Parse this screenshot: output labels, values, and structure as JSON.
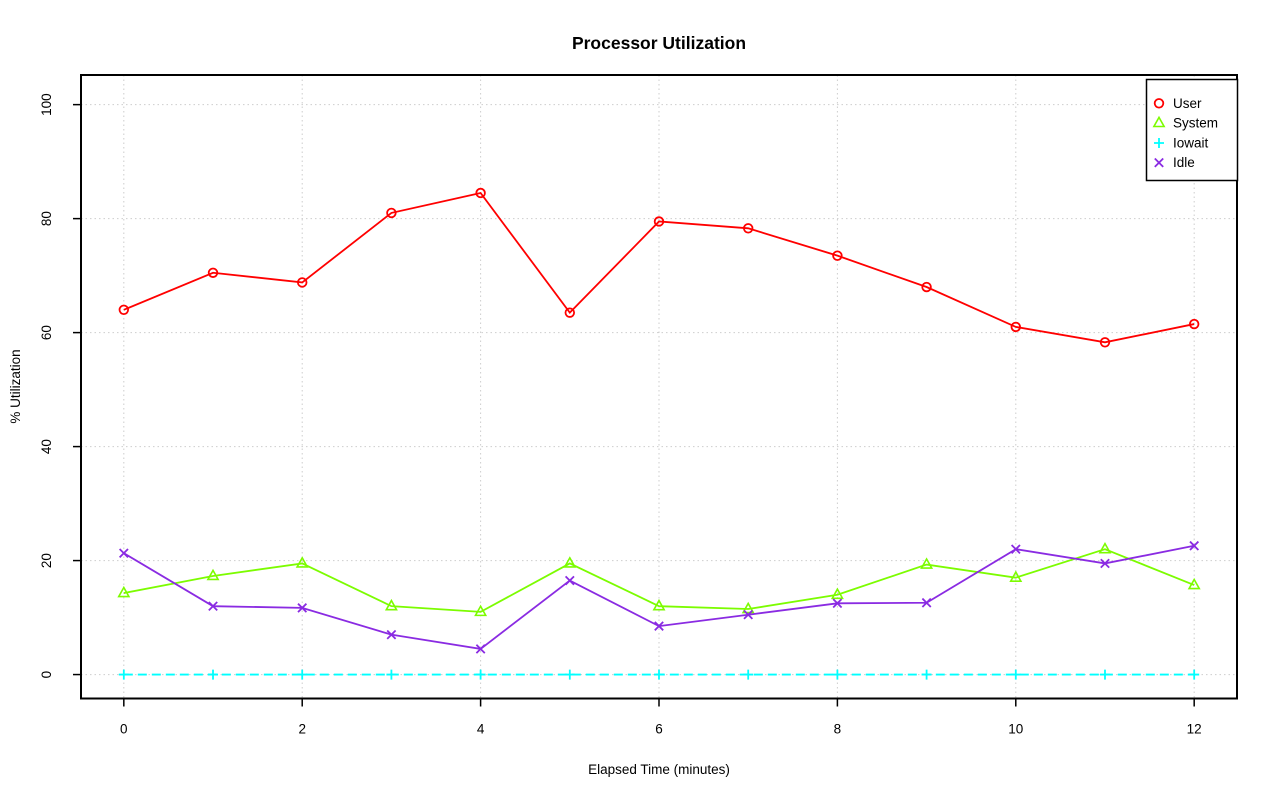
{
  "chart_data": {
    "type": "line",
    "title": "Processor Utilization",
    "xlabel": "Elapsed Time (minutes)",
    "ylabel": "% Utilization",
    "x": [
      0,
      1,
      2,
      3,
      4,
      5,
      6,
      7,
      8,
      9,
      10,
      11,
      12
    ],
    "x_ticks": [
      0,
      2,
      4,
      6,
      8,
      10,
      12
    ],
    "y_ticks": [
      0,
      20,
      40,
      60,
      80,
      100
    ],
    "xlim": [
      -0.48,
      12.48
    ],
    "ylim": [
      -4.2,
      105.2
    ],
    "grid": true,
    "grid_color": "#cdcdcd",
    "axis_color": "#000000",
    "legend_position": "topright",
    "series": [
      {
        "name": "User",
        "color": "#ff0000",
        "marker": "circle",
        "values": [
          64,
          70.5,
          68.8,
          81,
          84.5,
          63.5,
          79.5,
          78.3,
          73.5,
          68,
          61,
          58.3,
          61.5
        ]
      },
      {
        "name": "System",
        "color": "#7cfc00",
        "marker": "triangle",
        "values": [
          14.3,
          17.3,
          19.5,
          12,
          11,
          19.5,
          12,
          11.5,
          14,
          19.3,
          17,
          22,
          15.7
        ]
      },
      {
        "name": "Iowait",
        "color": "#00ffff",
        "marker": "plus",
        "dashed": true,
        "values": [
          0,
          0,
          0,
          0,
          0,
          0,
          0,
          0,
          0,
          0,
          0,
          0,
          0
        ]
      },
      {
        "name": "Idle",
        "color": "#8a2be2",
        "marker": "x",
        "values": [
          21.3,
          12,
          11.7,
          7,
          4.5,
          16.5,
          8.5,
          10.5,
          12.5,
          12.6,
          22,
          19.5,
          22.6
        ]
      }
    ]
  }
}
